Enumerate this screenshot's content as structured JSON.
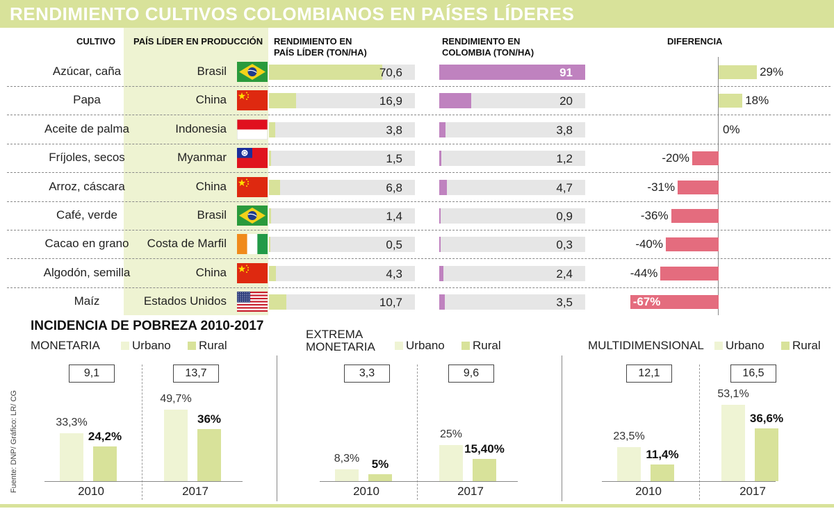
{
  "title": "RENDIMIENTO CULTIVOS COLOMBIANOS EN PAÍSES LÍDERES",
  "table_headers": {
    "crop": "CULTIVO",
    "country": "PAÍS LÍDER EN PRODUCCIÓN",
    "leader_line1": "RENDIMIENTO EN",
    "leader_line2": "PAÍS LÍDER (TON/HA)",
    "colombia_line1": "RENDIMIENTO EN",
    "colombia_line2": "COLOMBIA (TON/HA)",
    "difference": "DIFERENCIA"
  },
  "chart_data": [
    {
      "type": "bar",
      "title": "RENDIMIENTO CULTIVOS COLOMBIANOS EN PAÍSES LÍDERES",
      "rows": [
        {
          "crop": "Azúcar, caña",
          "country": "Brasil",
          "flag": "brazil",
          "leader": "70,6",
          "leader_num": 70.6,
          "colombia": "91",
          "colombia_num": 91,
          "diff": "29%",
          "diff_num": 29
        },
        {
          "crop": "Papa",
          "country": "China",
          "flag": "china",
          "leader": "16,9",
          "leader_num": 16.9,
          "colombia": "20",
          "colombia_num": 20,
          "diff": "18%",
          "diff_num": 18
        },
        {
          "crop": "Aceite de palma",
          "country": "Indonesia",
          "flag": "indonesia",
          "leader": "3,8",
          "leader_num": 3.8,
          "colombia": "3,8",
          "colombia_num": 3.8,
          "diff": "0%",
          "diff_num": 0
        },
        {
          "crop": "Fríjoles, secos",
          "country": "Myanmar",
          "flag": "taiwan-like",
          "leader": "1,5",
          "leader_num": 1.5,
          "colombia": "1,2",
          "colombia_num": 1.2,
          "diff": "-20%",
          "diff_num": -20
        },
        {
          "crop": "Arroz, cáscara",
          "country": "China",
          "flag": "china",
          "leader": "6,8",
          "leader_num": 6.8,
          "colombia": "4,7",
          "colombia_num": 4.7,
          "diff": "-31%",
          "diff_num": -31
        },
        {
          "crop": "Café, verde",
          "country": "Brasil",
          "flag": "brazil",
          "leader": "1,4",
          "leader_num": 1.4,
          "colombia": "0,9",
          "colombia_num": 0.9,
          "diff": "-36%",
          "diff_num": -36
        },
        {
          "crop": "Cacao en grano",
          "country": "Costa de Marfil",
          "flag": "ivory-coast",
          "leader": "0,5",
          "leader_num": 0.5,
          "colombia": "0,3",
          "colombia_num": 0.3,
          "diff": "-40%",
          "diff_num": -40
        },
        {
          "crop": "Algodón, semilla",
          "country": "China",
          "flag": "china",
          "leader": "4,3",
          "leader_num": 4.3,
          "colombia": "2,4",
          "colombia_num": 2.4,
          "diff": "-44%",
          "diff_num": -44
        },
        {
          "crop": "Maíz",
          "country": "Estados Unidos",
          "flag": "usa",
          "leader": "10,7",
          "leader_num": 10.7,
          "colombia": "3,5",
          "colombia_num": 3.5,
          "diff": "-67%",
          "diff_num": -67
        }
      ],
      "scale_max": 91
    },
    {
      "type": "bar",
      "title": "INCIDENCIA DE POBREZA 2010-2017",
      "legend": {
        "urbano": "Urbano",
        "rural": "Rural"
      },
      "groups": [
        {
          "name_line1": "MONETARIA",
          "name_line2": "",
          "years": [
            {
              "year": "2010",
              "gap": "9,1",
              "urbano": "33,3%",
              "urbano_num": 33.3,
              "rural": "24,2%",
              "rural_num": 24.2
            },
            {
              "year": "2017",
              "gap": "13,7",
              "urbano": "49,7%",
              "urbano_num": 49.7,
              "rural": "36%",
              "rural_num": 36
            }
          ]
        },
        {
          "name_line1": "EXTREMA",
          "name_line2": "MONETARIA",
          "years": [
            {
              "year": "2010",
              "gap": "3,3",
              "urbano": "8,3%",
              "urbano_num": 8.3,
              "rural": "5%",
              "rural_num": 5
            },
            {
              "year": "2017",
              "gap": "9,6",
              "urbano": "25%",
              "urbano_num": 25,
              "rural": "15,40%",
              "rural_num": 15.4
            }
          ]
        },
        {
          "name_line1": "MULTIDIMENSIONAL",
          "name_line2": "",
          "years": [
            {
              "year": "2010",
              "gap": "12,1",
              "urbano": "23,5%",
              "urbano_num": 23.5,
              "rural": "11,4%",
              "rural_num": 11.4
            },
            {
              "year": "2017",
              "gap": "16,5",
              "urbano": "53,1%",
              "urbano_num": 53.1,
              "rural": "36,6%",
              "rural_num": 36.6
            }
          ]
        }
      ]
    }
  ],
  "source": "Fuente: DNP/ Gráfico: LR/ CG"
}
